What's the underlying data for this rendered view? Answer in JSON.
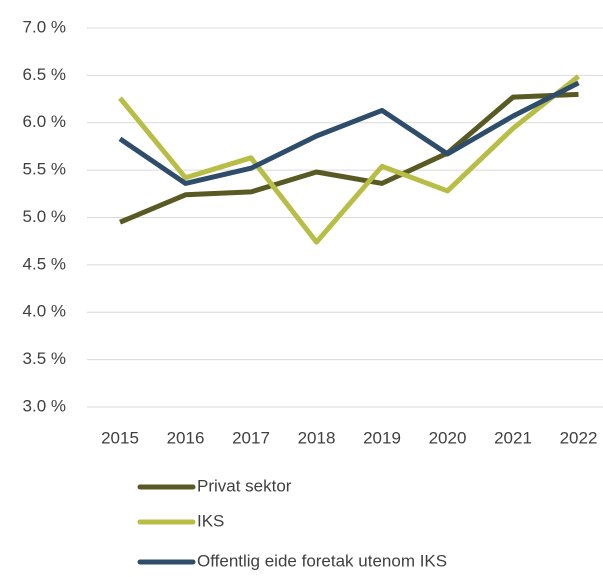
{
  "chart_data": {
    "type": "line",
    "categories": [
      "2015",
      "2016",
      "2017",
      "2018",
      "2019",
      "2020",
      "2021",
      "2022"
    ],
    "series": [
      {
        "name": "Privat sektor",
        "color": "#595a23",
        "values": [
          4.95,
          5.24,
          5.27,
          5.48,
          5.36,
          5.68,
          6.27,
          6.3
        ]
      },
      {
        "name": "IKS",
        "color": "#b8bd45",
        "values": [
          6.26,
          5.42,
          5.63,
          4.74,
          5.54,
          5.28,
          5.94,
          6.49
        ]
      },
      {
        "name": "Offentlig eide foretak utenom IKS",
        "color": "#2e4d6b",
        "values": [
          5.83,
          5.36,
          5.52,
          5.86,
          6.13,
          5.67,
          6.07,
          6.42
        ]
      }
    ],
    "ylim": [
      3.0,
      7.0
    ],
    "yticks": [
      {
        "value": 3.0,
        "label": "3.0 %"
      },
      {
        "value": 3.5,
        "label": "3.5 %"
      },
      {
        "value": 4.0,
        "label": "4.0 %"
      },
      {
        "value": 4.5,
        "label": "4.5 %"
      },
      {
        "value": 5.0,
        "label": "5.0 %"
      },
      {
        "value": 5.5,
        "label": "5.5 %"
      },
      {
        "value": 6.0,
        "label": "6.0 %"
      },
      {
        "value": 6.5,
        "label": "6.5 %"
      },
      {
        "value": 7.0,
        "label": "7.0 %"
      }
    ],
    "grid": true,
    "legend": "bottom"
  }
}
